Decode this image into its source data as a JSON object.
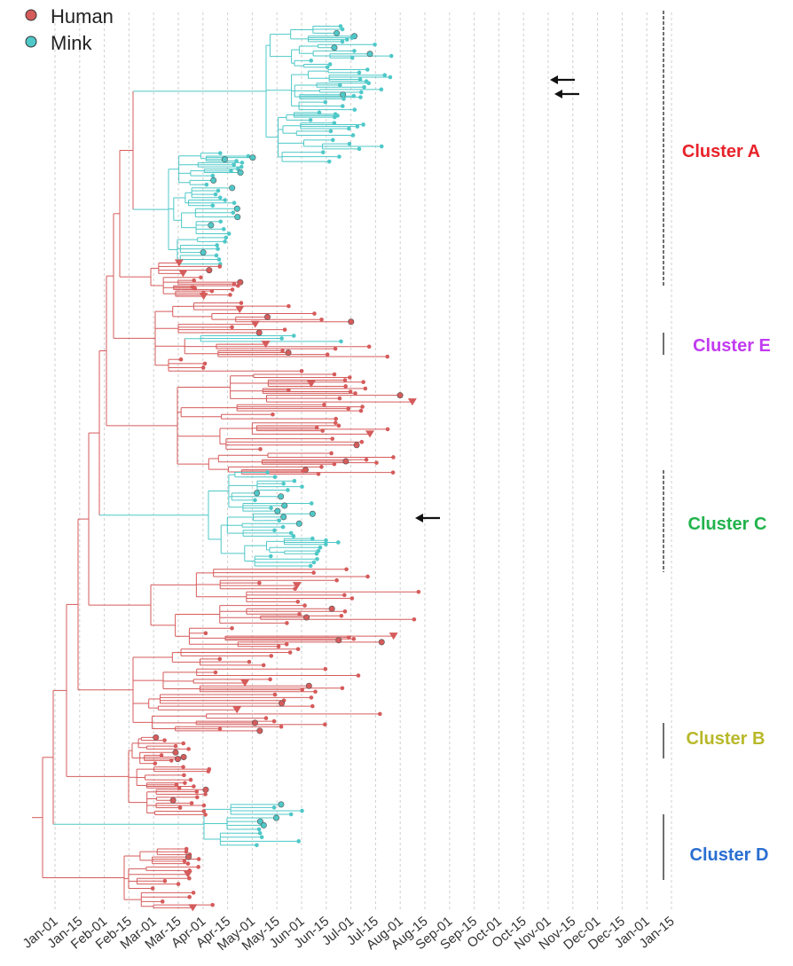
{
  "legend": {
    "items": [
      {
        "label": "Human",
        "color": "#d65b5b"
      },
      {
        "label": "Mink",
        "color": "#4fc8c8"
      }
    ]
  },
  "colors": {
    "human": "#d65b5b",
    "mink": "#4fc8c8",
    "grid": "#cfcfcf",
    "arrow": "#111111"
  },
  "clusters": [
    {
      "label": "Cluster A",
      "color": "#e8222a",
      "bar_style": "dashed"
    },
    {
      "label": "Cluster E",
      "color": "#c23bf0",
      "bar_style": "solid"
    },
    {
      "label": "Cluster C",
      "color": "#22b24c",
      "bar_style": "dashed"
    },
    {
      "label": "Cluster B",
      "color": "#b8b82a",
      "bar_style": "solid"
    },
    {
      "label": "Cluster D",
      "color": "#2a6fd1",
      "bar_style": "solid"
    }
  ],
  "x_axis": {
    "ticks": [
      "Jan-01",
      "Jan-15",
      "Feb-01",
      "Feb-15",
      "Mar-01",
      "Mar-15",
      "Apr-01",
      "Apr-15",
      "May-01",
      "May-15",
      "Jun-01",
      "Jun-15",
      "Jul-01",
      "Jul-15",
      "Aug-01",
      "Aug-15",
      "Sep-01",
      "Sep-15",
      "Oct-01",
      "Oct-15",
      "Nov-01",
      "Nov-15",
      "Dec-01",
      "Dec-15",
      "Jan-01",
      "Jan-15"
    ]
  },
  "annotations": {
    "arrows": 3,
    "arrow_icon": "left-arrow-icon"
  }
}
